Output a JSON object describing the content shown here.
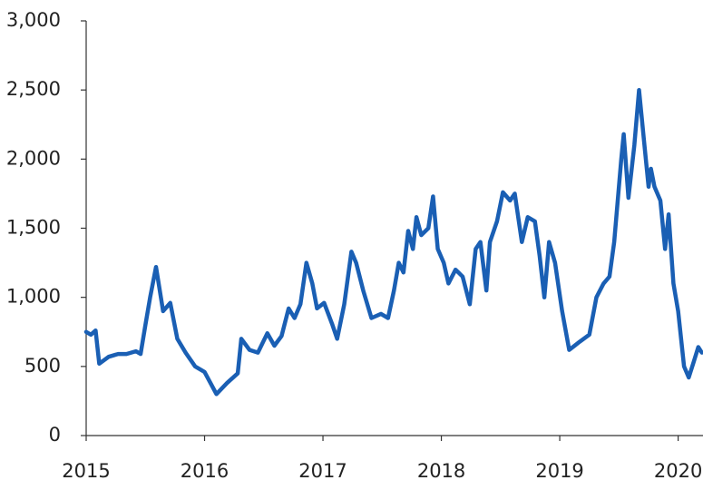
{
  "chart_data": {
    "type": "line",
    "x": [
      2015.0,
      2015.04,
      2015.08,
      2015.11,
      2015.19,
      2015.27,
      2015.34,
      2015.42,
      2015.46,
      2015.5,
      2015.54,
      2015.59,
      2015.65,
      2015.71,
      2015.77,
      2015.84,
      2015.92,
      2016.0,
      2016.1,
      2016.19,
      2016.28,
      2016.31,
      2016.38,
      2016.45,
      2016.53,
      2016.59,
      2016.65,
      2016.71,
      2016.76,
      2016.81,
      2016.86,
      2016.91,
      2016.95,
      2017.01,
      2017.08,
      2017.12,
      2017.18,
      2017.24,
      2017.28,
      2017.34,
      2017.41,
      2017.49,
      2017.55,
      2017.6,
      2017.64,
      2017.68,
      2017.72,
      2017.76,
      2017.79,
      2017.83,
      2017.89,
      2017.93,
      2017.97,
      2018.02,
      2018.06,
      2018.12,
      2018.18,
      2018.24,
      2018.29,
      2018.33,
      2018.38,
      2018.41,
      2018.47,
      2018.52,
      2018.58,
      2018.62,
      2018.68,
      2018.73,
      2018.79,
      2018.83,
      2018.87,
      2018.91,
      2018.96,
      2019.02,
      2019.08,
      2019.17,
      2019.25,
      2019.31,
      2019.37,
      2019.42,
      2019.46,
      2019.52,
      2019.54,
      2019.58,
      2019.63,
      2019.67,
      2019.71,
      2019.75,
      2019.77,
      2019.8,
      2019.85,
      2019.89,
      2019.92,
      2019.96,
      2020.0,
      2020.05,
      2020.09,
      2020.13,
      2020.17,
      2020.2
    ],
    "series": [
      {
        "color": "#1a5fb4",
        "values": [
          750,
          730,
          760,
          520,
          570,
          590,
          590,
          610,
          590,
          800,
          1000,
          1220,
          900,
          960,
          700,
          600,
          500,
          460,
          300,
          380,
          450,
          700,
          620,
          600,
          740,
          650,
          720,
          920,
          850,
          950,
          1250,
          1100,
          920,
          960,
          800,
          700,
          950,
          1330,
          1250,
          1050,
          850,
          880,
          850,
          1050,
          1250,
          1180,
          1480,
          1350,
          1580,
          1450,
          1500,
          1730,
          1350,
          1250,
          1100,
          1200,
          1150,
          950,
          1350,
          1400,
          1050,
          1400,
          1550,
          1760,
          1700,
          1750,
          1400,
          1580,
          1550,
          1300,
          1000,
          1400,
          1250,
          900,
          620,
          680,
          730,
          1000,
          1100,
          1150,
          1400,
          2000,
          2180,
          1720,
          2100,
          2500,
          2150,
          1800,
          1930,
          1800,
          1700,
          1350,
          1600,
          1100,
          900,
          500,
          420,
          530,
          640,
          600
        ]
      }
    ],
    "xlim": [
      2015,
      2020.21
    ],
    "xticks": [
      2015,
      2016,
      2017,
      2018,
      2019,
      2020
    ],
    "ylim": [
      0,
      3000
    ],
    "yticks": [
      0,
      500,
      {
        "value": 1000,
        "label": "1,000"
      },
      {
        "value": 1500,
        "label": "1,500"
      },
      {
        "value": 2000,
        "label": "2,000"
      },
      {
        "value": 2500,
        "label": "2,500"
      },
      {
        "value": 3000,
        "label": "3,000"
      }
    ]
  }
}
